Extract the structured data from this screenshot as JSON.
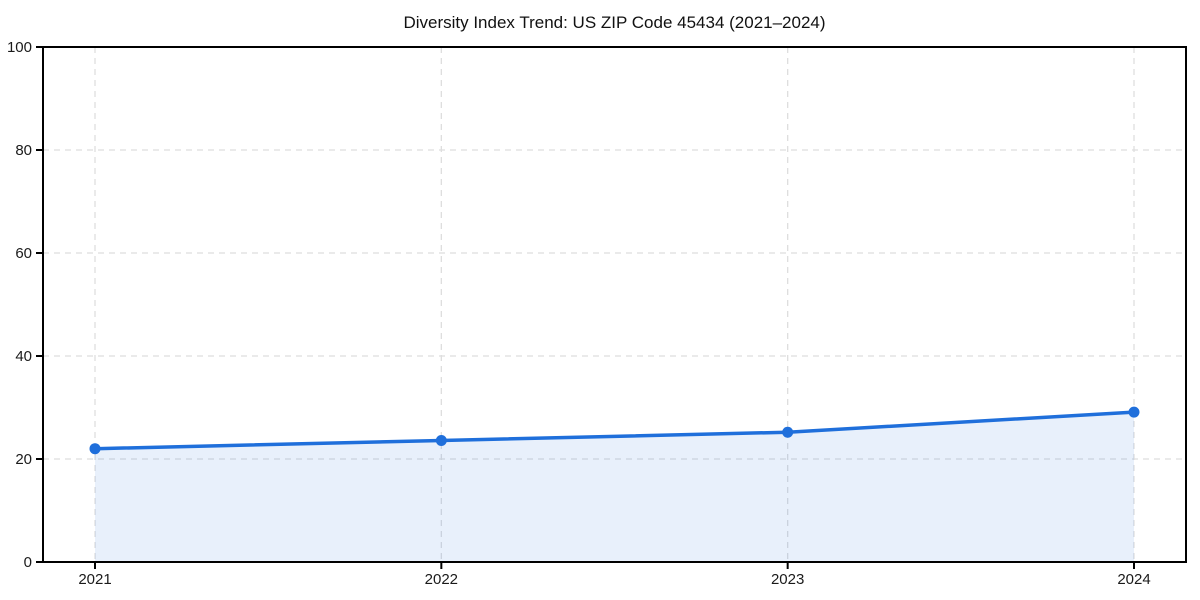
{
  "chart_data": {
    "type": "area",
    "title": "Diversity Index Trend: US ZIP Code 45434 (2021–2024)",
    "x": [
      "2021",
      "2022",
      "2023",
      "2024"
    ],
    "values": [
      22.0,
      23.6,
      25.2,
      29.1
    ],
    "xlabel": "",
    "ylabel": "",
    "ylim": [
      0,
      100
    ],
    "yticks": [
      0,
      20,
      40,
      60,
      80,
      100
    ],
    "grid": true,
    "grid_style": "dashed",
    "legend": "none",
    "marker": "circle",
    "line_color": "#1f6fdb",
    "marker_color": "#1f6fdb",
    "fill_color": "#1f6fdb",
    "fill_opacity": 0.1,
    "grid_color": "#dedede",
    "axis_color": "#000000",
    "tick_label_color": "#1a1a1a",
    "background_color": "#ffffff"
  }
}
